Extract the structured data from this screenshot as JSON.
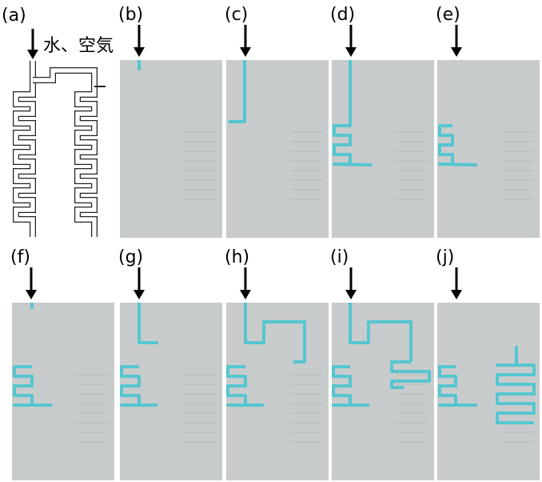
{
  "panels": [
    {
      "label": "(a)"
    },
    {
      "label": "(b)"
    },
    {
      "label": "(c)"
    },
    {
      "label": "(d)"
    },
    {
      "label": "(e)"
    },
    {
      "label": "(f)"
    },
    {
      "label": "(g)"
    },
    {
      "label": "(h)"
    },
    {
      "label": "(i)"
    },
    {
      "label": "(j)"
    }
  ],
  "annotation": "水、空気"
}
